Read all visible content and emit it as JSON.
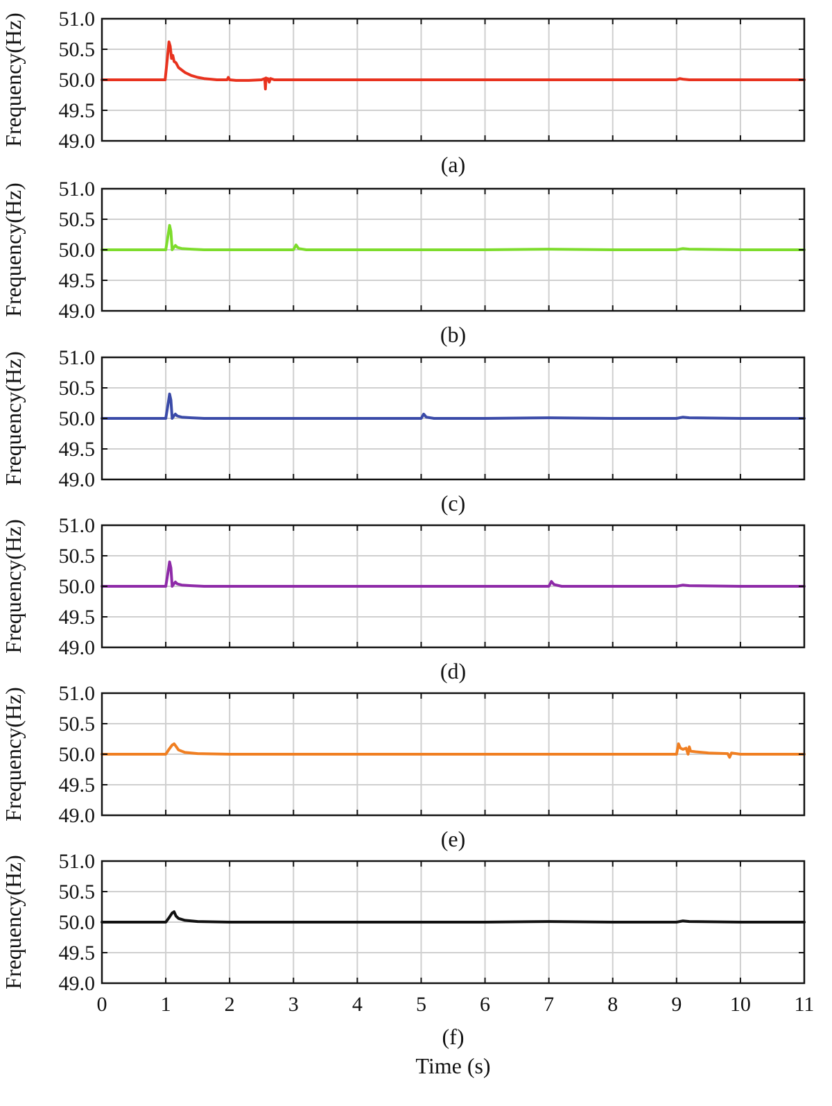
{
  "chart_data": [
    {
      "type": "line",
      "caption": "(a)",
      "ylabel": "Frequency(Hz)",
      "xlim": [
        0,
        11
      ],
      "ylim": [
        49.0,
        51.0
      ],
      "xticks": [
        "0",
        "1",
        "2",
        "3",
        "4",
        "5",
        "6",
        "7",
        "8",
        "9",
        "10",
        "11"
      ],
      "yticks": [
        "49.0",
        "49.5",
        "50.0",
        "50.5",
        "51.0"
      ],
      "grid": true,
      "color": "#e8321e",
      "series": [
        {
          "x": [
            0,
            0.99,
            1.02,
            1.05,
            1.07,
            1.09,
            1.11,
            1.13,
            1.16,
            1.2,
            1.3,
            1.4,
            1.5,
            1.6,
            1.7,
            1.8,
            1.9,
            1.96,
            1.98,
            2.0,
            2.1,
            2.3,
            2.5,
            2.55,
            2.56,
            2.57,
            2.58,
            2.6,
            2.62,
            2.64,
            2.7,
            3.0,
            4,
            5,
            6,
            7,
            8,
            9,
            9.05,
            9.1,
            9.2,
            10,
            11
          ],
          "y": [
            50.0,
            50.0,
            50.3,
            50.62,
            50.55,
            50.35,
            50.4,
            50.3,
            50.28,
            50.2,
            50.12,
            50.07,
            50.04,
            50.02,
            50.01,
            50.0,
            50.0,
            50.0,
            50.04,
            50.0,
            49.99,
            49.99,
            50.0,
            50.02,
            49.85,
            50.03,
            50.02,
            50.02,
            49.96,
            50.02,
            50.0,
            50.0,
            50.0,
            50.0,
            50.0,
            50.0,
            50.0,
            50.0,
            50.02,
            50.01,
            50.0,
            50.0,
            50.0
          ]
        }
      ]
    },
    {
      "type": "line",
      "caption": "(b)",
      "ylabel": "Frequency(Hz)",
      "xlim": [
        0,
        11
      ],
      "ylim": [
        49.0,
        51.0
      ],
      "xticks": [
        "0",
        "1",
        "2",
        "3",
        "4",
        "5",
        "6",
        "7",
        "8",
        "9",
        "10",
        "11"
      ],
      "yticks": [
        "49.0",
        "49.5",
        "50.0",
        "50.5",
        "51.0"
      ],
      "grid": true,
      "color": "#7ddc2c",
      "series": [
        {
          "x": [
            0,
            1.0,
            1.03,
            1.06,
            1.08,
            1.1,
            1.12,
            1.15,
            1.18,
            1.25,
            1.4,
            1.6,
            2.0,
            2.6,
            3.0,
            3.04,
            3.08,
            3.2,
            4,
            5,
            6,
            7,
            8,
            9,
            9.1,
            9.2,
            10,
            11
          ],
          "y": [
            50.0,
            50.0,
            50.2,
            50.4,
            50.3,
            50.0,
            50.03,
            50.07,
            50.04,
            50.02,
            50.01,
            50.0,
            50.0,
            50.0,
            50.0,
            50.08,
            50.02,
            50.0,
            50.0,
            50.0,
            50.0,
            50.01,
            50.0,
            50.0,
            50.02,
            50.01,
            50.0,
            50.0
          ]
        }
      ]
    },
    {
      "type": "line",
      "caption": "(c)",
      "ylabel": "Frequency(Hz)",
      "xlim": [
        0,
        11
      ],
      "ylim": [
        49.0,
        51.0
      ],
      "xticks": [
        "0",
        "1",
        "2",
        "3",
        "4",
        "5",
        "6",
        "7",
        "8",
        "9",
        "10",
        "11"
      ],
      "yticks": [
        "49.0",
        "49.5",
        "50.0",
        "50.5",
        "51.0"
      ],
      "grid": true,
      "color": "#3a4aa8",
      "series": [
        {
          "x": [
            0,
            1.0,
            1.03,
            1.06,
            1.08,
            1.1,
            1.12,
            1.15,
            1.18,
            1.25,
            1.4,
            1.6,
            2.0,
            3.0,
            4.0,
            5.0,
            5.04,
            5.08,
            5.2,
            6,
            7,
            8,
            9,
            9.1,
            9.2,
            10,
            11
          ],
          "y": [
            50.0,
            50.0,
            50.2,
            50.4,
            50.3,
            50.0,
            50.03,
            50.07,
            50.04,
            50.02,
            50.01,
            50.0,
            50.0,
            50.0,
            50.0,
            50.0,
            50.07,
            50.02,
            50.0,
            50.0,
            50.01,
            50.0,
            50.0,
            50.02,
            50.01,
            50.0,
            50.0
          ]
        }
      ]
    },
    {
      "type": "line",
      "caption": "(d)",
      "ylabel": "Frequency(Hz)",
      "xlim": [
        0,
        11
      ],
      "ylim": [
        49.0,
        51.0
      ],
      "xticks": [
        "0",
        "1",
        "2",
        "3",
        "4",
        "5",
        "6",
        "7",
        "8",
        "9",
        "10",
        "11"
      ],
      "yticks": [
        "49.0",
        "49.5",
        "50.0",
        "50.5",
        "51.0"
      ],
      "grid": true,
      "color": "#8e2aa8",
      "series": [
        {
          "x": [
            0,
            1.0,
            1.03,
            1.06,
            1.08,
            1.1,
            1.12,
            1.15,
            1.18,
            1.25,
            1.4,
            1.6,
            2.0,
            3.0,
            4.0,
            5.0,
            6.0,
            7.0,
            7.04,
            7.08,
            7.2,
            8,
            9,
            9.1,
            9.2,
            10,
            11
          ],
          "y": [
            50.0,
            50.0,
            50.2,
            50.4,
            50.3,
            50.0,
            50.03,
            50.07,
            50.04,
            50.02,
            50.01,
            50.0,
            50.0,
            50.0,
            50.0,
            50.0,
            50.0,
            50.0,
            50.08,
            50.03,
            50.0,
            50.0,
            50.0,
            50.02,
            50.01,
            50.0,
            50.0
          ]
        }
      ]
    },
    {
      "type": "line",
      "caption": "(e)",
      "ylabel": "Frequency(Hz)",
      "xlim": [
        0,
        11
      ],
      "ylim": [
        49.0,
        51.0
      ],
      "xticks": [
        "0",
        "1",
        "2",
        "3",
        "4",
        "5",
        "6",
        "7",
        "8",
        "9",
        "10",
        "11"
      ],
      "yticks": [
        "49.0",
        "49.5",
        "50.0",
        "50.5",
        "51.0"
      ],
      "grid": true,
      "color": "#f07f22",
      "series": [
        {
          "x": [
            0,
            1.0,
            1.05,
            1.1,
            1.13,
            1.16,
            1.2,
            1.3,
            1.5,
            2.0,
            3,
            4,
            5,
            6,
            7,
            8,
            9.0,
            9.03,
            9.06,
            9.1,
            9.15,
            9.18,
            9.2,
            9.22,
            9.3,
            9.5,
            9.8,
            9.83,
            9.86,
            10,
            11
          ],
          "y": [
            50.0,
            50.0,
            50.08,
            50.15,
            50.17,
            50.13,
            50.07,
            50.03,
            50.01,
            50.0,
            50.0,
            50.0,
            50.0,
            50.0,
            50.0,
            50.0,
            50.0,
            50.17,
            50.1,
            50.08,
            50.1,
            50.0,
            50.12,
            50.05,
            50.04,
            50.02,
            50.01,
            49.95,
            50.02,
            50.0,
            50.0
          ]
        }
      ]
    },
    {
      "type": "line",
      "caption": "(f)",
      "ylabel": "Frequency(Hz)",
      "xlabel": "Time (s)",
      "xlim": [
        0,
        11
      ],
      "ylim": [
        49.0,
        51.0
      ],
      "xticks": [
        "0",
        "1",
        "2",
        "3",
        "4",
        "5",
        "6",
        "7",
        "8",
        "9",
        "10",
        "11"
      ],
      "yticks": [
        "49.0",
        "49.5",
        "50.0",
        "50.5",
        "51.0"
      ],
      "grid": true,
      "color": "#111111",
      "series": [
        {
          "x": [
            0,
            1.0,
            1.05,
            1.1,
            1.13,
            1.16,
            1.2,
            1.3,
            1.5,
            2.0,
            3,
            4,
            5,
            6,
            7,
            8,
            9.0,
            9.1,
            9.2,
            10,
            11
          ],
          "y": [
            50.0,
            50.0,
            50.07,
            50.15,
            50.17,
            50.1,
            50.06,
            50.03,
            50.01,
            50.0,
            50.0,
            50.0,
            50.0,
            50.0,
            50.01,
            50.0,
            50.0,
            50.02,
            50.01,
            50.0,
            50.0
          ]
        }
      ]
    }
  ]
}
